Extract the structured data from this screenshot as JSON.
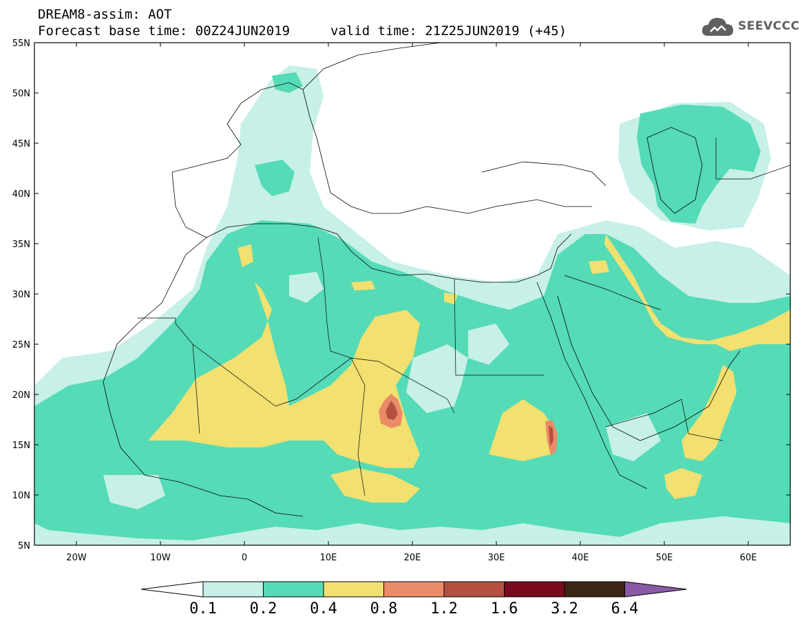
{
  "header": {
    "line1": "DREAM8-assim: AOT",
    "line2": "Forecast base time: 00Z24JUN2019",
    "line3": "valid time: 21Z25JUN2019 (+45)"
  },
  "logo": {
    "text": "SEEVCCC",
    "icon": "cloud-icon"
  },
  "map": {
    "lat_labels": [
      "55N",
      "50N",
      "45N",
      "40N",
      "35N",
      "30N",
      "25N",
      "20N",
      "15N",
      "10N",
      "5N"
    ],
    "lon_labels": [
      "20W",
      "10W",
      "0",
      "10E",
      "20E",
      "30E",
      "40E",
      "50E",
      "60E"
    ],
    "lat_range": [
      5,
      55
    ],
    "lon_range": [
      -25,
      65
    ]
  },
  "colorbar": {
    "ticks": [
      "0.1",
      "0.2",
      "0.4",
      "0.8",
      "1.2",
      "1.6",
      "3.2",
      "6.4"
    ],
    "colors": [
      "#ffffff",
      "#c6f0e8",
      "#55dbb6",
      "#f2e070",
      "#eb8c68",
      "#b55040",
      "#7a0a1e",
      "#3d2516",
      "#8a5aa6"
    ]
  },
  "fields": {
    "colors": {
      "very_low": "#c6f0e8",
      "low": "#55dbb6",
      "medium": "#f2e070",
      "high": "#eb8c68",
      "very_high": "#b55040"
    }
  }
}
